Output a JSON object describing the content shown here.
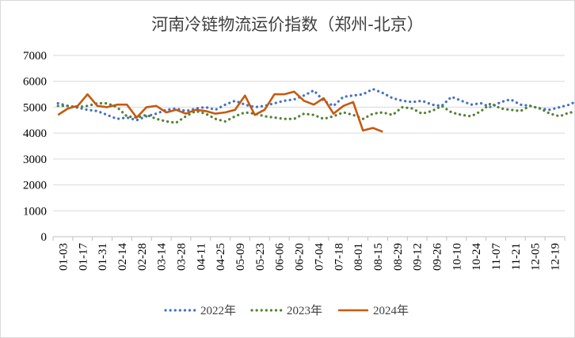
{
  "chart_data": {
    "type": "line",
    "title": "河南冷链物流运价指数（郑州-北京）",
    "xlabel": "",
    "ylabel": "",
    "ylim": [
      0,
      7000
    ],
    "yticks": [
      0,
      1000,
      2000,
      3000,
      4000,
      5000,
      6000,
      7000
    ],
    "x_tick_labels": [
      "01-03",
      "01-17",
      "01-31",
      "02-14",
      "02-28",
      "03-14",
      "03-28",
      "04-11",
      "04-25",
      "05-09",
      "05-23",
      "06-06",
      "06-20",
      "07-04",
      "07-18",
      "08-01",
      "08-15",
      "08-29",
      "09-12",
      "09-26",
      "10-10",
      "10-24",
      "11-07",
      "11-21",
      "12-05",
      "12-19"
    ],
    "grid": "horizontal",
    "legend_position": "bottom",
    "series": [
      {
        "name": "2022年",
        "style": "dotted",
        "color": "#4472c4",
        "values": [
          5150,
          5050,
          4980,
          4900,
          4850,
          4700,
          4550,
          4600,
          4500,
          4650,
          4750,
          4900,
          4950,
          4850,
          4950,
          5000,
          4900,
          5100,
          5250,
          5100,
          5000,
          5050,
          5150,
          5250,
          5300,
          5450,
          5650,
          5250,
          5050,
          5400,
          5450,
          5500,
          5700,
          5550,
          5350,
          5250,
          5200,
          5250,
          5100,
          5050,
          5400,
          5250,
          5100,
          5150,
          5000,
          5200,
          5300,
          5100,
          5050,
          4950,
          4900,
          5000,
          5100,
          5300,
          5400,
          5000,
          4700,
          4950,
          5250,
          5150,
          5400,
          5850,
          5600,
          5350,
          5350,
          5400,
          5450,
          5450,
          5400,
          5300,
          5350,
          5300,
          4950,
          4950,
          4850,
          4750,
          4950,
          5000,
          4800,
          4850,
          5000,
          5050,
          5200
        ]
      },
      {
        "name": "2023年",
        "style": "dotted",
        "color": "#548235",
        "values": [
          5050,
          5050,
          5000,
          5050,
          5150,
          5150,
          5000,
          4650,
          4600,
          4700,
          4550,
          4450,
          4400,
          4650,
          4850,
          4750,
          4550,
          4450,
          4650,
          4800,
          4750,
          4650,
          4600,
          4550,
          4550,
          4750,
          4700,
          4550,
          4650,
          4800,
          4700,
          4550,
          4750,
          4800,
          4700,
          5000,
          4950,
          4750,
          4850,
          5050,
          4800,
          4700,
          4650,
          4850,
          5150,
          4950,
          4900,
          4850,
          5050,
          4950,
          4750,
          4650,
          4800,
          4800,
          4750,
          4650,
          4750,
          4600,
          4550,
          4250,
          4550,
          4850,
          4950,
          4950,
          5100,
          4900,
          4700,
          4750,
          5050,
          4950,
          4850,
          4800,
          4900,
          5100,
          4850,
          4650,
          4750,
          4850,
          4850,
          4900,
          4900,
          4900,
          5000
        ]
      },
      {
        "name": "2024年",
        "style": "solid",
        "color": "#c55a11",
        "values": [
          4700,
          4950,
          5050,
          5500,
          5050,
          5000,
          5100,
          5100,
          4600,
          5000,
          5050,
          4800,
          4900,
          4750,
          4900,
          4850,
          4750,
          4800,
          4900,
          5450,
          4700,
          4900,
          5500,
          5500,
          5600,
          5250,
          5100,
          5350,
          4750,
          5050,
          5200,
          4100,
          4200,
          4050
        ]
      }
    ]
  }
}
